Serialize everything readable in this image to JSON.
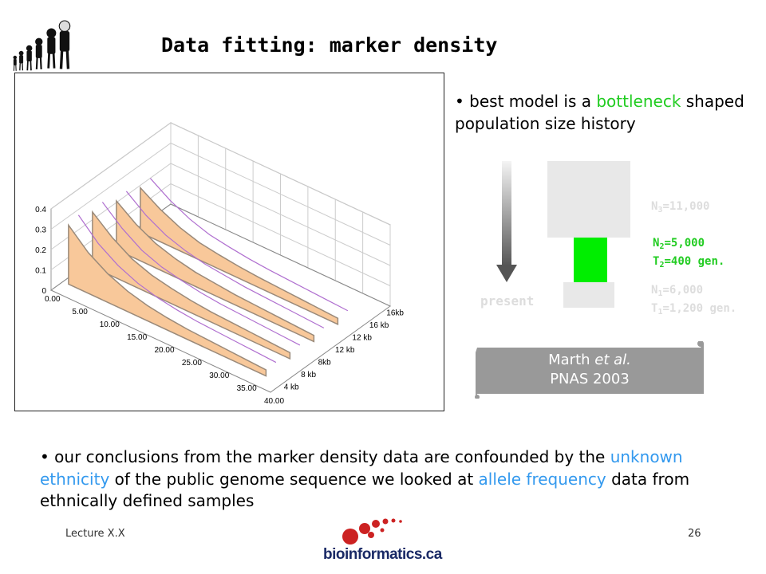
{
  "slide": {
    "title": "Data fitting: marker density",
    "bullet1": {
      "pre": "best model is a ",
      "highlight": "bottleneck",
      "post": " shaped population size history"
    },
    "bullet2": {
      "p1": "our conclusions from the marker density data are confounded by the ",
      "h1": "unknown ethnicity",
      "p2": " of the public genome sequence we looked at ",
      "h2": "allele frequency",
      "p3": " data from ethnically defined samples"
    },
    "diagram": {
      "present_label": "present",
      "n3": "N",
      "n3_sub": "3",
      "n3_val": "=11,000",
      "n2": "N",
      "n2_sub": "2",
      "n2_val": "=5,000",
      "t2": "T",
      "t2_sub": "2",
      "t2_val": "=400 gen.",
      "n1": "N",
      "n1_sub": "1",
      "n1_val": "=6,000",
      "t1": "T",
      "t1_sub": "1",
      "t1_val": "=1,200 gen."
    },
    "citation": {
      "line1_pre": "Marth ",
      "line1_em": "et al.",
      "line2": "PNAS 2003"
    },
    "footer": {
      "left": "Lecture X.X",
      "right": "26",
      "logo": "bioinformatics.ca"
    },
    "colors": {
      "bottleneck_green": "#00ee00",
      "highlight_green": "#22cc22",
      "highlight_blue": "#3399ee",
      "curve_fill": "#f8c89a",
      "model_line": "#b070d0"
    }
  },
  "chart_data": {
    "type": "area",
    "zlabels": [
      "0",
      "0.1",
      "0.2",
      "0.3",
      "0.4"
    ],
    "xlabels": [
      "0.00",
      "5.00",
      "10.00",
      "15.00",
      "20.00",
      "25.00",
      "30.00",
      "35.00",
      "40.00"
    ],
    "ylabels": [
      "4 kb",
      "8 kb",
      "8kb",
      "12 kb",
      "12 kb",
      "16 kb",
      "16kb"
    ],
    "zlim": [
      0,
      0.4
    ],
    "xlim": [
      0,
      40
    ],
    "series": [
      {
        "values": [
          0.29,
          0.2,
          0.14,
          0.1,
          0.075,
          0.06,
          0.05,
          0.045,
          0.04,
          0.035,
          0.03
        ]
      },
      {
        "values": [
          0.27,
          0.19,
          0.13,
          0.095,
          0.075,
          0.06,
          0.05,
          0.045,
          0.04,
          0.035,
          0.03
        ]
      },
      {
        "values": [
          0.24,
          0.17,
          0.12,
          0.09,
          0.07,
          0.06,
          0.05,
          0.045,
          0.04,
          0.035,
          0.03
        ]
      },
      {
        "values": [
          0.22,
          0.16,
          0.115,
          0.085,
          0.07,
          0.058,
          0.05,
          0.045,
          0.04,
          0.035,
          0.03
        ]
      }
    ]
  }
}
